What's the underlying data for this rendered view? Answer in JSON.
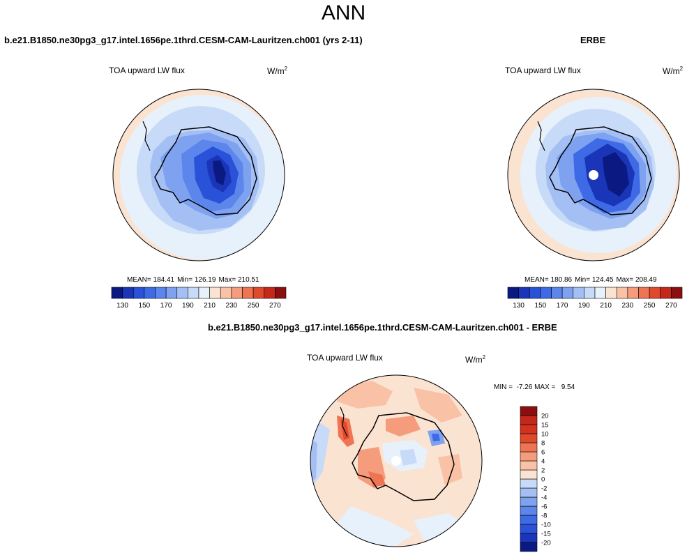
{
  "page": {
    "title": "ANN"
  },
  "panels": {
    "model": {
      "case_title": "b.e21.B1850.ne30pg3_g17.intel.1656pe.1thrd.CESM-CAM-Lauritzen.ch001 (yrs 2-11)",
      "variable": "TOA upward LW flux",
      "units": "W/m",
      "units_exp": "2",
      "stats": {
        "mean_label": "MEAN= 184.41",
        "min_label": "Min= 126.19",
        "max_label": "Max= 210.51"
      }
    },
    "obs": {
      "case_title": "ERBE",
      "variable": "TOA upward LW flux",
      "units": "W/m",
      "units_exp": "2",
      "stats": {
        "mean_label": "MEAN= 180.86",
        "min_label": "Min= 124.45",
        "max_label": "Max= 208.49"
      }
    },
    "diff": {
      "case_title": "b.e21.B1850.ne30pg3_g17.intel.1656pe.1thrd.CESM-CAM-Lauritzen.ch001 - ERBE",
      "variable": "TOA upward LW flux",
      "units": "W/m",
      "units_exp": "2",
      "stats": {
        "minmax_label": "MIN =  -7.26 MAX =   9.54"
      }
    }
  },
  "chart_data": [
    {
      "type": "heatmap",
      "projection": "south-polar-stereographic",
      "title": "TOA upward LW flux",
      "units": "W/m2",
      "mean": 184.41,
      "min": 126.19,
      "max": 210.51,
      "colorbar": {
        "orientation": "horizontal",
        "levels": [
          130,
          140,
          150,
          160,
          170,
          180,
          190,
          200,
          210,
          220,
          230,
          240,
          250,
          260,
          270
        ],
        "tick_labels": [
          "130",
          "150",
          "170",
          "190",
          "210",
          "230",
          "250",
          "270"
        ],
        "colors": [
          "#0a1a82",
          "#1a35b8",
          "#2a52d8",
          "#3e6ae6",
          "#5c86ec",
          "#7fa2f0",
          "#a4bff4",
          "#c7daf8",
          "#e7f1fb",
          "#fbe3d2",
          "#f9c2a6",
          "#f59c7c",
          "#ef7453",
          "#e04a2c",
          "#c4281a",
          "#8c0f0f"
        ]
      }
    },
    {
      "type": "heatmap",
      "projection": "south-polar-stereographic",
      "title": "TOA upward LW flux",
      "units": "W/m2",
      "mean": 180.86,
      "min": 124.45,
      "max": 208.49,
      "colorbar": {
        "orientation": "horizontal",
        "levels": [
          130,
          140,
          150,
          160,
          170,
          180,
          190,
          200,
          210,
          220,
          230,
          240,
          250,
          260,
          270
        ],
        "tick_labels": [
          "130",
          "150",
          "170",
          "190",
          "210",
          "230",
          "250",
          "270"
        ],
        "colors": [
          "#0a1a82",
          "#1a35b8",
          "#2a52d8",
          "#3e6ae6",
          "#5c86ec",
          "#7fa2f0",
          "#a4bff4",
          "#c7daf8",
          "#e7f1fb",
          "#fbe3d2",
          "#f9c2a6",
          "#f59c7c",
          "#ef7453",
          "#e04a2c",
          "#c4281a",
          "#8c0f0f"
        ]
      }
    },
    {
      "type": "heatmap",
      "projection": "south-polar-stereographic",
      "title": "TOA upward LW flux",
      "units": "W/m2",
      "min": -7.26,
      "max": 9.54,
      "colorbar": {
        "orientation": "vertical",
        "levels": [
          -20,
          -15,
          -10,
          -8,
          -6,
          -4,
          -2,
          0,
          2,
          4,
          6,
          8,
          10,
          15,
          20
        ],
        "tick_labels": [
          "20",
          "15",
          "10",
          "8",
          "6",
          "4",
          "2",
          "0",
          "-2",
          "-4",
          "-6",
          "-8",
          "-10",
          "-15",
          "-20"
        ],
        "colors": [
          "#0a1a82",
          "#1a35b8",
          "#2a52d8",
          "#3e6ae6",
          "#5c86ec",
          "#7fa2f0",
          "#a4bff4",
          "#c7daf8",
          "#fbe3d2",
          "#f9c2a6",
          "#f59c7c",
          "#ef7453",
          "#e04a2c",
          "#d2321e",
          "#c4281a",
          "#8c0f0f"
        ]
      }
    }
  ]
}
